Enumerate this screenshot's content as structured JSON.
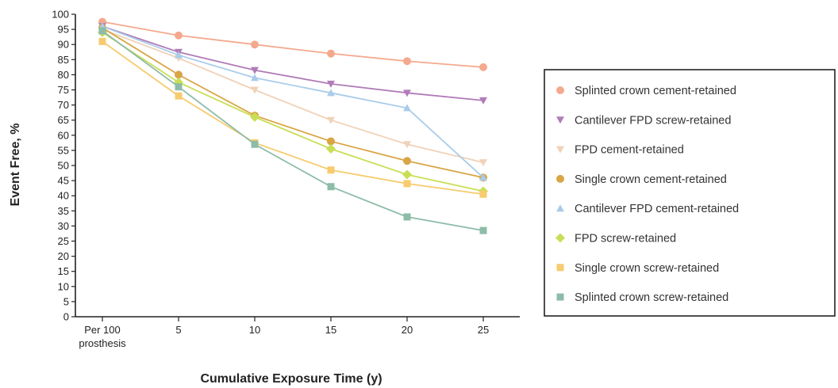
{
  "chart_data": {
    "type": "line",
    "title": "",
    "xlabel": "Cumulative Exposure Time (y)",
    "ylabel": "Event Free, %",
    "categories": [
      "Per 100 prosthesis",
      "5",
      "10",
      "15",
      "20",
      "25"
    ],
    "category_lines": [
      [
        "Per 100",
        "prosthesis"
      ],
      [
        "5"
      ],
      [
        "10"
      ],
      [
        "15"
      ],
      [
        "20"
      ],
      [
        "25"
      ]
    ],
    "ylim": [
      0,
      100
    ],
    "ytick_step": 5,
    "grid": false,
    "legend_position": "right",
    "series": [
      {
        "name": "Splinted crown cement-retained",
        "color": "#F4A98E",
        "marker": "circle",
        "values": [
          97.5,
          93,
          90,
          87,
          84.5,
          82.5
        ]
      },
      {
        "name": "Cantilever FPD screw-retained",
        "color": "#B07CB8",
        "marker": "triangle-down",
        "values": [
          96,
          87.5,
          81.5,
          77,
          74,
          71.5
        ]
      },
      {
        "name": "FPD cement-retained",
        "color": "#F0D2B8",
        "marker": "triangle-down",
        "values": [
          95,
          85.5,
          75,
          65,
          57,
          51
        ]
      },
      {
        "name": "Single crown cement-retained",
        "color": "#D9A545",
        "marker": "circle",
        "values": [
          95.5,
          80,
          66.5,
          58,
          51.5,
          46
        ]
      },
      {
        "name": "Cantilever FPD cement-retained",
        "color": "#A9CCEA",
        "marker": "triangle-up",
        "values": [
          96,
          86.5,
          79,
          74,
          69,
          46
        ]
      },
      {
        "name": "FPD screw-retained",
        "color": "#C9DE55",
        "marker": "diamond",
        "values": [
          94,
          77.5,
          66,
          55.5,
          47,
          41.5
        ]
      },
      {
        "name": "Single crown screw-retained",
        "color": "#F7CB6E",
        "marker": "square",
        "values": [
          91,
          73,
          57.5,
          48.5,
          44,
          40.5
        ]
      },
      {
        "name": "Splinted crown screw-retained",
        "color": "#8DBCA8",
        "marker": "square",
        "values": [
          94.5,
          76,
          57,
          43,
          33,
          28.5
        ]
      }
    ]
  }
}
